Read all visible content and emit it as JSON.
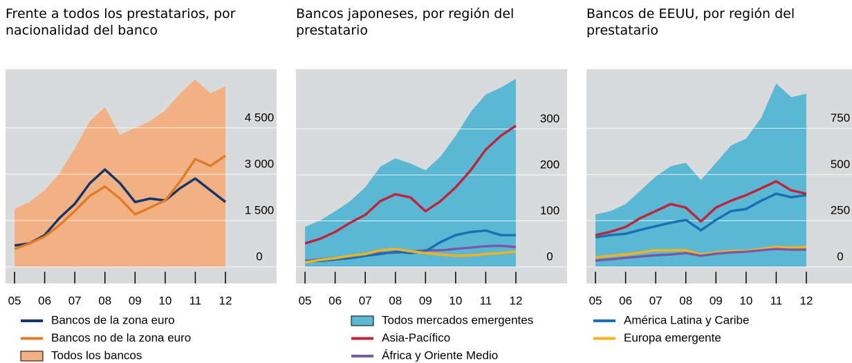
{
  "chart_data": [
    {
      "type": "line",
      "title": "Frente a todos los prestatarios, por nacionalidad del banco",
      "x": [
        2005,
        2005.5,
        2006,
        2006.5,
        2007,
        2007.5,
        2008,
        2008.5,
        2009,
        2009.5,
        2010,
        2010.5,
        2011,
        2011.5,
        2012
      ],
      "xlim": [
        2004.7,
        2013.7
      ],
      "xticks": [
        {
          "value": 2005,
          "label": "05"
        },
        {
          "value": 2006,
          "label": "06"
        },
        {
          "value": 2007,
          "label": "07"
        },
        {
          "value": 2008,
          "label": "08"
        },
        {
          "value": 2009,
          "label": "09"
        },
        {
          "value": 2010,
          "label": "10"
        },
        {
          "value": 2011,
          "label": "11"
        },
        {
          "value": 2012,
          "label": "12"
        }
      ],
      "ylim": [
        0,
        6400
      ],
      "yticks": [
        0,
        {
          "value": 1500,
          "label": "1 500"
        },
        {
          "value": 3000,
          "label": "3 000"
        },
        {
          "value": 4500,
          "label": "4 500"
        }
      ],
      "grid": true,
      "series": [
        {
          "name": "Bancos de la zona euro",
          "color": "#14366b",
          "values": [
            690,
            760,
            1030,
            1590,
            2040,
            2710,
            3150,
            2710,
            2100,
            2210,
            2150,
            2550,
            2860,
            2480,
            2100
          ]
        },
        {
          "name": "Bancos no de la zona euro",
          "color": "#e07b2a",
          "values": [
            580,
            760,
            980,
            1360,
            1810,
            2300,
            2600,
            2210,
            1700,
            1920,
            2150,
            2770,
            3490,
            3270,
            3600
          ]
        },
        {
          "name": "Todos los bancos",
          "color": "#f2b183",
          "fill": true,
          "values": [
            1880,
            2100,
            2480,
            3040,
            3830,
            4720,
            5170,
            4270,
            4500,
            4720,
            5060,
            5620,
            6060,
            5620,
            5840
          ]
        }
      ]
    },
    {
      "type": "line",
      "title": "Bancos japoneses, por región del prestatario",
      "x": [
        2005,
        2005.5,
        2006,
        2006.5,
        2007,
        2007.5,
        2008,
        2008.5,
        2009,
        2009.5,
        2010,
        2010.5,
        2011,
        2011.5,
        2012
      ],
      "xlim": [
        2004.7,
        2013.7
      ],
      "xticks": [
        {
          "value": 2005,
          "label": "05"
        },
        {
          "value": 2006,
          "label": "06"
        },
        {
          "value": 2007,
          "label": "07"
        },
        {
          "value": 2008,
          "label": "08"
        },
        {
          "value": 2009,
          "label": "09"
        },
        {
          "value": 2010,
          "label": "10"
        },
        {
          "value": 2011,
          "label": "11"
        },
        {
          "value": 2012,
          "label": "12"
        }
      ],
      "ylim": [
        0,
        430
      ],
      "yticks": [
        0,
        100,
        200,
        300
      ],
      "grid": true,
      "series": [
        {
          "name": "Todos mercados emergentes",
          "color": "#5bb8d4",
          "fill": true,
          "values": [
            87,
            101,
            121,
            143,
            173,
            218,
            236,
            225,
            210,
            240,
            285,
            337,
            375,
            390,
            409
          ]
        },
        {
          "name": "Asia-Pacífico",
          "color": "#c0243c",
          "values": [
            51,
            61,
            76,
            96,
            113,
            143,
            158,
            151,
            121,
            143,
            173,
            210,
            255,
            285,
            307
          ]
        },
        {
          "name": "África y Oriente Medio",
          "color": "#7a5aa6",
          "values": [
            13,
            16,
            19,
            22,
            27,
            30,
            31,
            33,
            36,
            36,
            39,
            42,
            45,
            46,
            43
          ]
        },
        {
          "color": "#1a6fb5",
          "values": [
            12,
            13,
            16,
            19,
            24,
            28,
            33,
            30,
            34,
            54,
            69,
            76,
            79,
            69,
            69
          ]
        },
        {
          "color": "#f5b21a",
          "values": [
            10,
            15,
            19,
            24,
            28,
            36,
            39,
            34,
            30,
            27,
            24,
            25,
            28,
            30,
            33
          ]
        }
      ]
    },
    {
      "type": "line",
      "title": "Bancos de EEUU, por región del prestatario",
      "x": [
        2005,
        2005.5,
        2006,
        2006.5,
        2007,
        2007.5,
        2008,
        2008.5,
        2009,
        2009.5,
        2010,
        2010.5,
        2011,
        2011.5,
        2012
      ],
      "xlim": [
        2004.7,
        2013.7
      ],
      "xticks": [
        {
          "value": 2005,
          "label": "05"
        },
        {
          "value": 2006,
          "label": "06"
        },
        {
          "value": 2007,
          "label": "07"
        },
        {
          "value": 2008,
          "label": "08"
        },
        {
          "value": 2009,
          "label": "09"
        },
        {
          "value": 2010,
          "label": "10"
        },
        {
          "value": 2011,
          "label": "11"
        },
        {
          "value": 2012,
          "label": "12"
        }
      ],
      "ylim": [
        0,
        1070
      ],
      "yticks": [
        0,
        250,
        500,
        750
      ],
      "grid": true,
      "series": [
        {
          "name": "América Latina y Caribe",
          "color": "#1a6fb5",
          "values": [
            160,
            172,
            179,
            201,
            220,
            239,
            254,
            198,
            254,
            302,
            313,
            358,
            396,
            377,
            388
          ]
        },
        {
          "name": "Europa emergente",
          "color": "#f5b21a",
          "values": [
            52,
            60,
            67,
            78,
            90,
            90,
            90,
            67,
            78,
            86,
            86,
            97,
            108,
            104,
            108
          ]
        },
        {
          "color": "#5bb8d4",
          "fill": true,
          "values": [
            284,
            302,
            340,
            414,
            489,
            545,
            563,
            470,
            563,
            657,
            694,
            806,
            993,
            918,
            937
          ]
        },
        {
          "color": "#c0243c",
          "values": [
            172,
            190,
            216,
            265,
            302,
            340,
            321,
            246,
            321,
            358,
            388,
            425,
            463,
            414,
            396
          ]
        },
        {
          "color": "#7a5aa6",
          "values": [
            34,
            41,
            49,
            56,
            63,
            67,
            75,
            60,
            71,
            78,
            82,
            90,
            97,
            93,
            93
          ]
        }
      ]
    }
  ]
}
